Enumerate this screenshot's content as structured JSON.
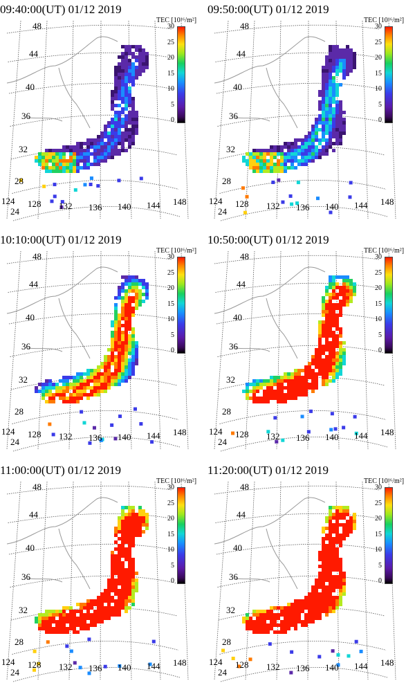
{
  "colorbar": {
    "label": "TEC [10¹⁶/m²]",
    "ticks": [
      "30",
      "25",
      "20",
      "15",
      "10",
      "5",
      "0"
    ],
    "range": [
      0,
      30
    ]
  },
  "lat_labels": [
    "48",
    "44",
    "40",
    "36",
    "32",
    "28",
    "24"
  ],
  "lon_labels": [
    "124",
    "128",
    "132",
    "136",
    "140",
    "144",
    "148"
  ],
  "panels": [
    {
      "title": "09:40:00(UT)  01/12 2019",
      "intensity": 0.05
    },
    {
      "title": "09:50:00(UT)  01/12 2019",
      "intensity": 0.15
    },
    {
      "title": "10:10:00(UT)  01/12 2019",
      "intensity": 0.45
    },
    {
      "title": "10:50:00(UT)  01/12 2019",
      "intensity": 0.65
    },
    {
      "title": "11:00:00(UT)  01/12 2019",
      "intensity": 0.8
    },
    {
      "title": "11:20:00(UT)  01/12 2019",
      "intensity": 0.85
    }
  ],
  "colors": {
    "background_low": "#5b2aa8",
    "mid": "#1a7cff",
    "high": "#ff1a00",
    "grid": "#555555",
    "coast": "#999999"
  }
}
